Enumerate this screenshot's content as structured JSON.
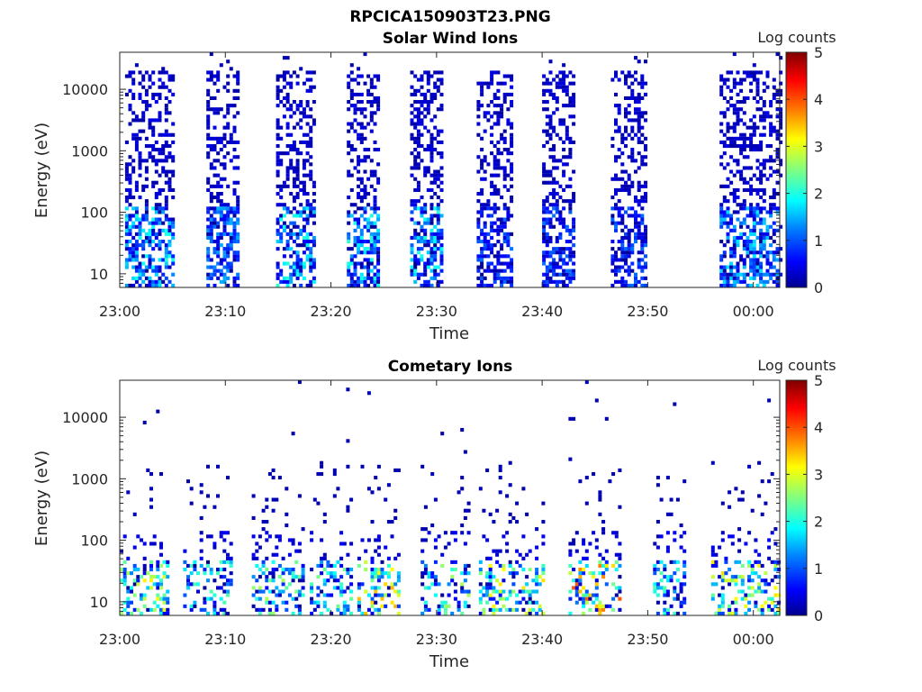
{
  "figure": {
    "title": "RPCICA150903T23.PNG"
  },
  "colors": {
    "axis": "#262626",
    "colormap": [
      "#00008f",
      "#0000ff",
      "#0080ff",
      "#00ffff",
      "#80ff80",
      "#ffff00",
      "#ff8000",
      "#ff0000",
      "#800000"
    ]
  },
  "chart_data": [
    {
      "type": "heatmap",
      "title": "Solar Wind Ions",
      "xlabel": "Time",
      "ylabel": "Energy (eV)",
      "x_tick_labels": [
        "23:00",
        "23:10",
        "23:20",
        "23:30",
        "23:40",
        "23:50",
        "00:00"
      ],
      "x_tick_minutes": [
        0,
        10,
        20,
        30,
        40,
        50,
        60
      ],
      "xlim_minutes": [
        0,
        62.5
      ],
      "y_scale": "log",
      "y_tick_labels": [
        "10",
        "100",
        "1000",
        "10000"
      ],
      "y_tick_values": [
        10,
        100,
        1000,
        10000
      ],
      "ylim": [
        6,
        40000
      ],
      "colorbar": {
        "label": "Log counts",
        "ticks": [
          "0",
          "1",
          "2",
          "3",
          "4",
          "5"
        ],
        "range": [
          0,
          5
        ]
      },
      "count_groups": [
        {
          "start_min": 0.5,
          "end_min": 5.0,
          "low_peak_log": 2.1
        },
        {
          "start_min": 8.2,
          "end_min": 11.2,
          "low_peak_log": 1.5
        },
        {
          "start_min": 14.8,
          "end_min": 18.5,
          "low_peak_log": 2.1
        },
        {
          "start_min": 21.5,
          "end_min": 24.5,
          "low_peak_log": 2.1
        },
        {
          "start_min": 27.5,
          "end_min": 30.5,
          "low_peak_log": 2.1
        },
        {
          "start_min": 33.8,
          "end_min": 37.2,
          "low_peak_log": 1.2
        },
        {
          "start_min": 40.0,
          "end_min": 43.0,
          "low_peak_log": 1.2
        },
        {
          "start_min": 46.5,
          "end_min": 49.8,
          "low_peak_log": 1.2
        },
        {
          "start_min": 56.8,
          "end_min": 62.5,
          "low_peak_log": 1.8
        }
      ]
    },
    {
      "type": "heatmap",
      "title": "Cometary Ions",
      "xlabel": "Time",
      "ylabel": "Energy (eV)",
      "x_tick_labels": [
        "23:00",
        "23:10",
        "23:20",
        "23:30",
        "23:40",
        "23:50",
        "00:00"
      ],
      "x_tick_minutes": [
        0,
        10,
        20,
        30,
        40,
        50,
        60
      ],
      "xlim_minutes": [
        0,
        62.5
      ],
      "y_scale": "log",
      "y_tick_labels": [
        "10",
        "100",
        "1000",
        "10000"
      ],
      "y_tick_values": [
        10,
        100,
        1000,
        10000
      ],
      "ylim": [
        6,
        40000
      ],
      "colorbar": {
        "label": "Log counts",
        "ticks": [
          "0",
          "1",
          "2",
          "3",
          "4",
          "5"
        ],
        "range": [
          0,
          5
        ]
      },
      "count_groups": [
        {
          "start_min": 0.0,
          "end_min": 4.5,
          "low_peak_log": 3.2
        },
        {
          "start_min": 6.0,
          "end_min": 10.5,
          "low_peak_log": 2.3
        },
        {
          "start_min": 12.5,
          "end_min": 17.5,
          "low_peak_log": 2.8
        },
        {
          "start_min": 18.0,
          "end_min": 22.0,
          "low_peak_log": 2.6
        },
        {
          "start_min": 22.5,
          "end_min": 26.5,
          "low_peak_log": 3.5
        },
        {
          "start_min": 28.5,
          "end_min": 33.0,
          "low_peak_log": 2.8
        },
        {
          "start_min": 34.0,
          "end_min": 40.0,
          "low_peak_log": 3.3
        },
        {
          "start_min": 42.5,
          "end_min": 47.5,
          "low_peak_log": 4.0
        },
        {
          "start_min": 50.5,
          "end_min": 53.5,
          "low_peak_log": 2.3
        },
        {
          "start_min": 56.0,
          "end_min": 62.5,
          "low_peak_log": 3.4
        }
      ]
    }
  ]
}
